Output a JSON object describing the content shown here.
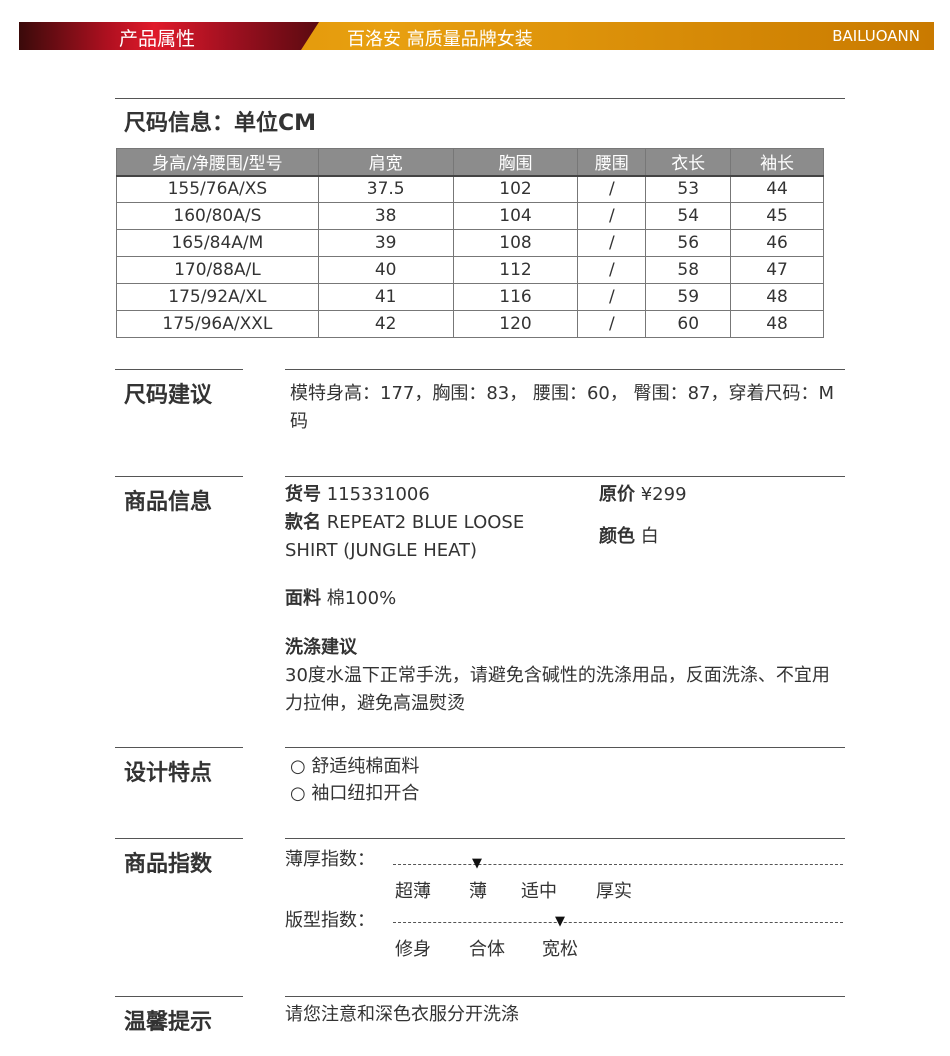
{
  "banner": {
    "title": "产品属性",
    "slogan": "百洛安 高质量品牌女装",
    "brand": "BAILUOANN"
  },
  "size_info": {
    "title": "尺码信息：单位CM",
    "headers": [
      "身高/净腰围/型号",
      "肩宽",
      "胸围",
      "腰围",
      "衣长",
      "袖长"
    ],
    "rows": [
      [
        "155/76A/XS",
        "37.5",
        "102",
        "/",
        "53",
        "44"
      ],
      [
        "160/80A/S",
        "38",
        "104",
        "/",
        "54",
        "45"
      ],
      [
        "165/84A/M",
        "39",
        "108",
        "/",
        "56",
        "46"
      ],
      [
        "170/88A/L",
        "40",
        "112",
        "/",
        "58",
        "47"
      ],
      [
        "175/92A/XL",
        "41",
        "116",
        "/",
        "59",
        "48"
      ],
      [
        "175/96A/XXL",
        "42",
        "120",
        "/",
        "60",
        "48"
      ]
    ]
  },
  "size_advice": {
    "label": "尺码建议",
    "text": "模特身高：177，胸围：83， 腰围：60， 臀围：87，穿着尺码：M码"
  },
  "product_info": {
    "label": "商品信息",
    "sku_label": "货号",
    "sku": "115331006",
    "name_label": "款名",
    "name": "REPEAT2 BLUE LOOSE SHIRT (JUNGLE HEAT)",
    "price_label": "原价",
    "price": "¥299",
    "color_label": "颜色",
    "color": "白",
    "fabric_label": "面料",
    "fabric": "棉100%",
    "wash_label": "洗涤建议",
    "wash": "30度水温下正常手洗，请避免含碱性的洗涤用品，反面洗涤、不宜用力拉伸，避免高温熨烫"
  },
  "design": {
    "label": "设计特点",
    "items": [
      "○ 舒适纯棉面料",
      "○ 袖口纽扣开合"
    ]
  },
  "index": {
    "label": "商品指数",
    "thickness": {
      "label": "薄厚指数：",
      "options": [
        "超薄",
        "薄",
        "适中",
        "厚实"
      ],
      "selected": "薄"
    },
    "fit": {
      "label": "版型指数：",
      "options": [
        "修身",
        "合体",
        "宽松"
      ],
      "selected": "宽松"
    }
  },
  "tip": {
    "label": "温馨提示",
    "text": "请您注意和深色衣服分开洗涤"
  }
}
